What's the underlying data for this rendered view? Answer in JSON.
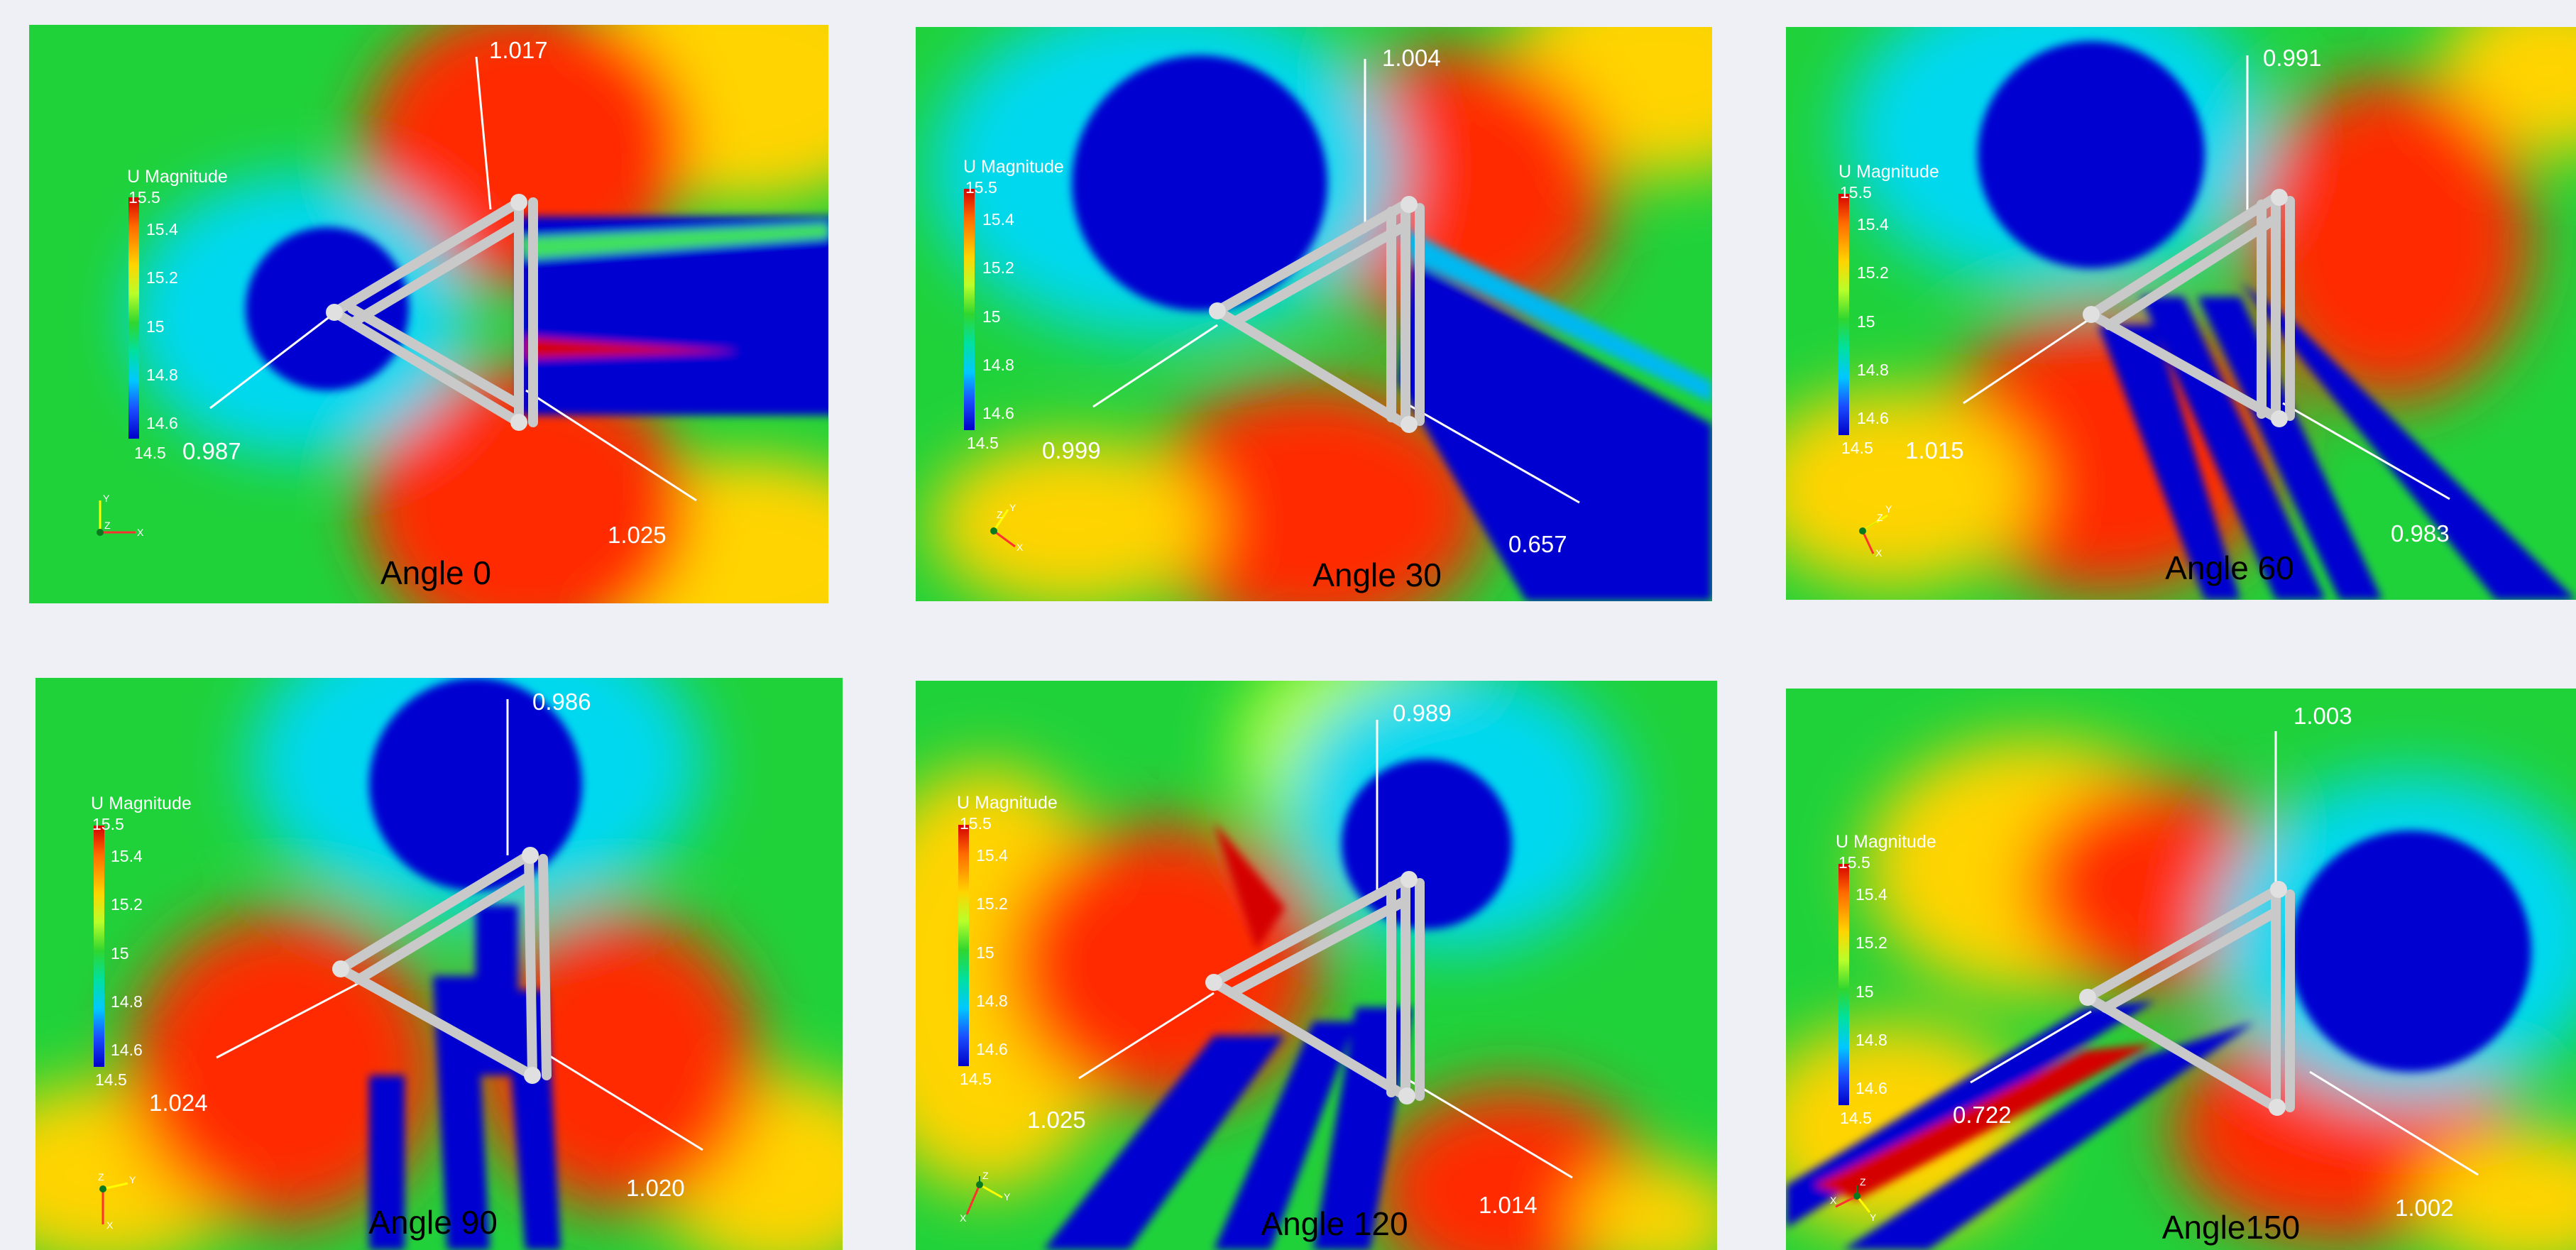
{
  "colorbar": {
    "title": "U Magnitude",
    "ticks": [
      "15.5",
      "15.4",
      "15.2",
      "15",
      "14.8",
      "14.6",
      "14.5"
    ]
  },
  "panels": [
    {
      "id": "p0",
      "title": "Angle 0",
      "values": {
        "top": "1.017",
        "left": "0.987",
        "right": "1.025"
      },
      "axes_labels": [
        "Y",
        "Z",
        "X"
      ]
    },
    {
      "id": "p30",
      "title": "Angle 30",
      "values": {
        "top": "1.004",
        "left": "0.999",
        "right": "0.657"
      },
      "axes_labels": [
        "Z",
        "Y",
        "X"
      ]
    },
    {
      "id": "p60",
      "title": "Angle 60",
      "values": {
        "top": "0.991",
        "left": "1.015",
        "right": "0.983"
      },
      "axes_labels": [
        "Y",
        "Z",
        "X"
      ]
    },
    {
      "id": "p90",
      "title": "Angle 90",
      "values": {
        "top": "0.986",
        "left": "1.024",
        "right": "1.020"
      },
      "axes_labels": [
        "Z",
        "Y",
        "X"
      ]
    },
    {
      "id": "p120",
      "title": "Angle 120",
      "values": {
        "top": "0.989",
        "left": "1.025",
        "right": "1.014"
      },
      "axes_labels": [
        "Z",
        "Y",
        "X"
      ]
    },
    {
      "id": "p150",
      "title": "Angle150",
      "values": {
        "top": "1.003",
        "left": "0.722",
        "right": "1.002"
      },
      "axes_labels": [
        "X",
        "Z",
        "Y"
      ]
    }
  ]
}
